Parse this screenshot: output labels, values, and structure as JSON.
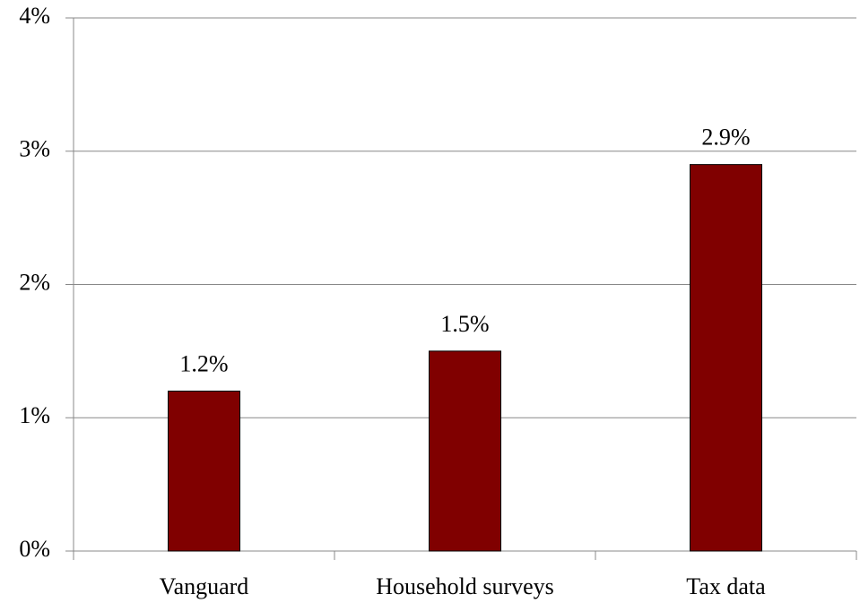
{
  "chart_data": {
    "type": "bar",
    "categories": [
      "Vanguard",
      "Household surveys",
      "Tax data"
    ],
    "values": [
      1.2,
      1.5,
      2.9
    ],
    "value_labels": [
      "1.2%",
      "1.5%",
      "2.9%"
    ],
    "color": "#800000",
    "ylim": [
      0,
      4
    ],
    "yticks": [
      {
        "value": 0,
        "label": "0%"
      },
      {
        "value": 1,
        "label": "1%"
      },
      {
        "value": 2,
        "label": "2%"
      },
      {
        "value": 3,
        "label": "3%"
      },
      {
        "value": 4,
        "label": "4%"
      }
    ],
    "grid": true
  }
}
